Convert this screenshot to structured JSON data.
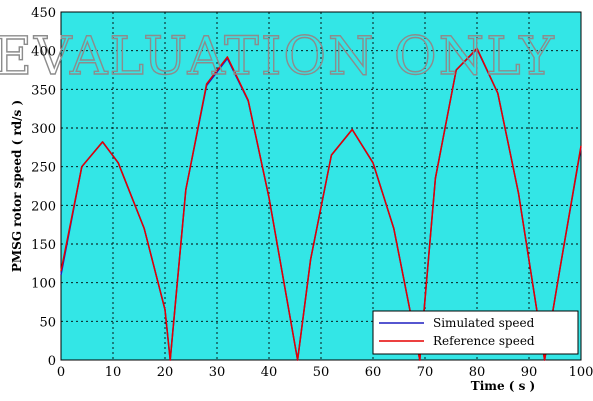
{
  "chart_data": {
    "type": "line",
    "title": "",
    "xlabel": "Time ( s )",
    "ylabel": "PMSG rotor speed ( rd/s )",
    "xlim": [
      0,
      100
    ],
    "ylim": [
      0,
      450
    ],
    "xticks": [
      0,
      10,
      20,
      30,
      40,
      50,
      60,
      70,
      80,
      90,
      100
    ],
    "yticks": [
      0,
      50,
      100,
      150,
      200,
      250,
      300,
      350,
      400,
      450
    ],
    "grid": true,
    "plot_background": "#33e6e6",
    "legend_position": "bottom-right",
    "watermark": "EVALUATION ONLY",
    "series": [
      {
        "name": "Simulated speed",
        "color": "#1f1fc0",
        "x": [
          0,
          4,
          8,
          11,
          16,
          20,
          21,
          24,
          28,
          32,
          36,
          40,
          45.5,
          48,
          52,
          56,
          60,
          64,
          69,
          72,
          76,
          80,
          84,
          88,
          93,
          96,
          100
        ],
        "y": [
          110,
          250,
          282,
          255,
          170,
          65,
          0,
          220,
          355,
          390,
          335,
          210,
          0,
          130,
          265,
          298,
          255,
          170,
          0,
          235,
          375,
          402,
          345,
          215,
          0,
          120,
          275
        ]
      },
      {
        "name": "Reference speed",
        "color": "#e60000",
        "x": [
          0,
          4,
          8,
          11,
          16,
          20,
          21,
          24,
          28,
          32,
          36,
          40,
          45.5,
          48,
          52,
          56,
          60,
          64,
          69,
          72,
          76,
          80,
          84,
          88,
          93,
          96,
          100
        ],
        "y": [
          115,
          250,
          282,
          255,
          170,
          65,
          0,
          220,
          357,
          392,
          336,
          210,
          0,
          130,
          265,
          298,
          255,
          170,
          0,
          235,
          375,
          403,
          345,
          215,
          0,
          120,
          277
        ]
      }
    ]
  }
}
